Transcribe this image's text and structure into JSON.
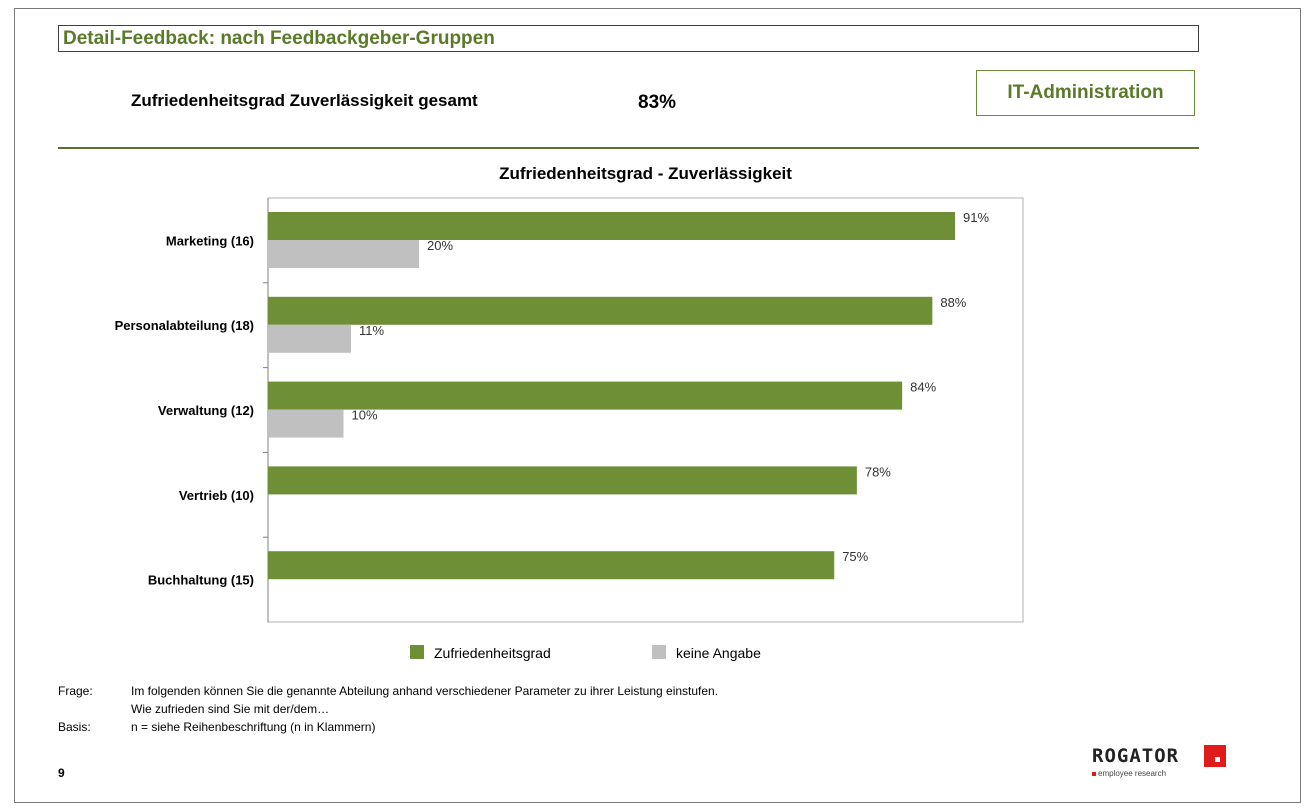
{
  "header": {
    "title": "Detail-Feedback: nach Feedbackgeber-Gruppen"
  },
  "summary": {
    "label": "Zufriedenheitsgrad Zuverlässigkeit gesamt",
    "value": "83%"
  },
  "department": "IT-Administration",
  "colors": {
    "green": "#6e8f36",
    "gray": "#c0c0c0",
    "title_green": "#5a7a2a"
  },
  "chart_data": {
    "type": "bar",
    "orientation": "horizontal",
    "title": "Zufriedenheitsgrad - Zuverlässigkeit",
    "categories": [
      "Marketing (16)",
      "Personalabteilung (18)",
      "Verwaltung (12)",
      "Vertrieb (10)",
      "Buchhaltung (15)"
    ],
    "series": [
      {
        "name": "Zufriedenheitsgrad",
        "values": [
          91,
          88,
          84,
          78,
          75
        ],
        "labels": [
          "91%",
          "88%",
          "84%",
          "78%",
          "75%"
        ],
        "color": "#6e8f36"
      },
      {
        "name": "keine Angabe",
        "values": [
          20,
          11,
          10,
          null,
          null
        ],
        "labels": [
          "20%",
          "11%",
          "10%",
          "",
          ""
        ],
        "color": "#c0c0c0"
      }
    ],
    "xlim": [
      0,
      100
    ],
    "grid": false,
    "legend": "bottom"
  },
  "footer": {
    "frage_label": "Frage:",
    "frage_line1": "Im folgenden können Sie die genannte Abteilung anhand verschiedener Parameter zu ihrer Leistung einstufen.",
    "frage_line2": "Wie zufrieden sind Sie mit der/dem…",
    "basis_label": "Basis:",
    "basis_text": "n = siehe Reihenbeschriftung (n in Klammern)"
  },
  "page_number": "9",
  "logo": {
    "name": "ROGATOR",
    "tagline": "employee research"
  }
}
